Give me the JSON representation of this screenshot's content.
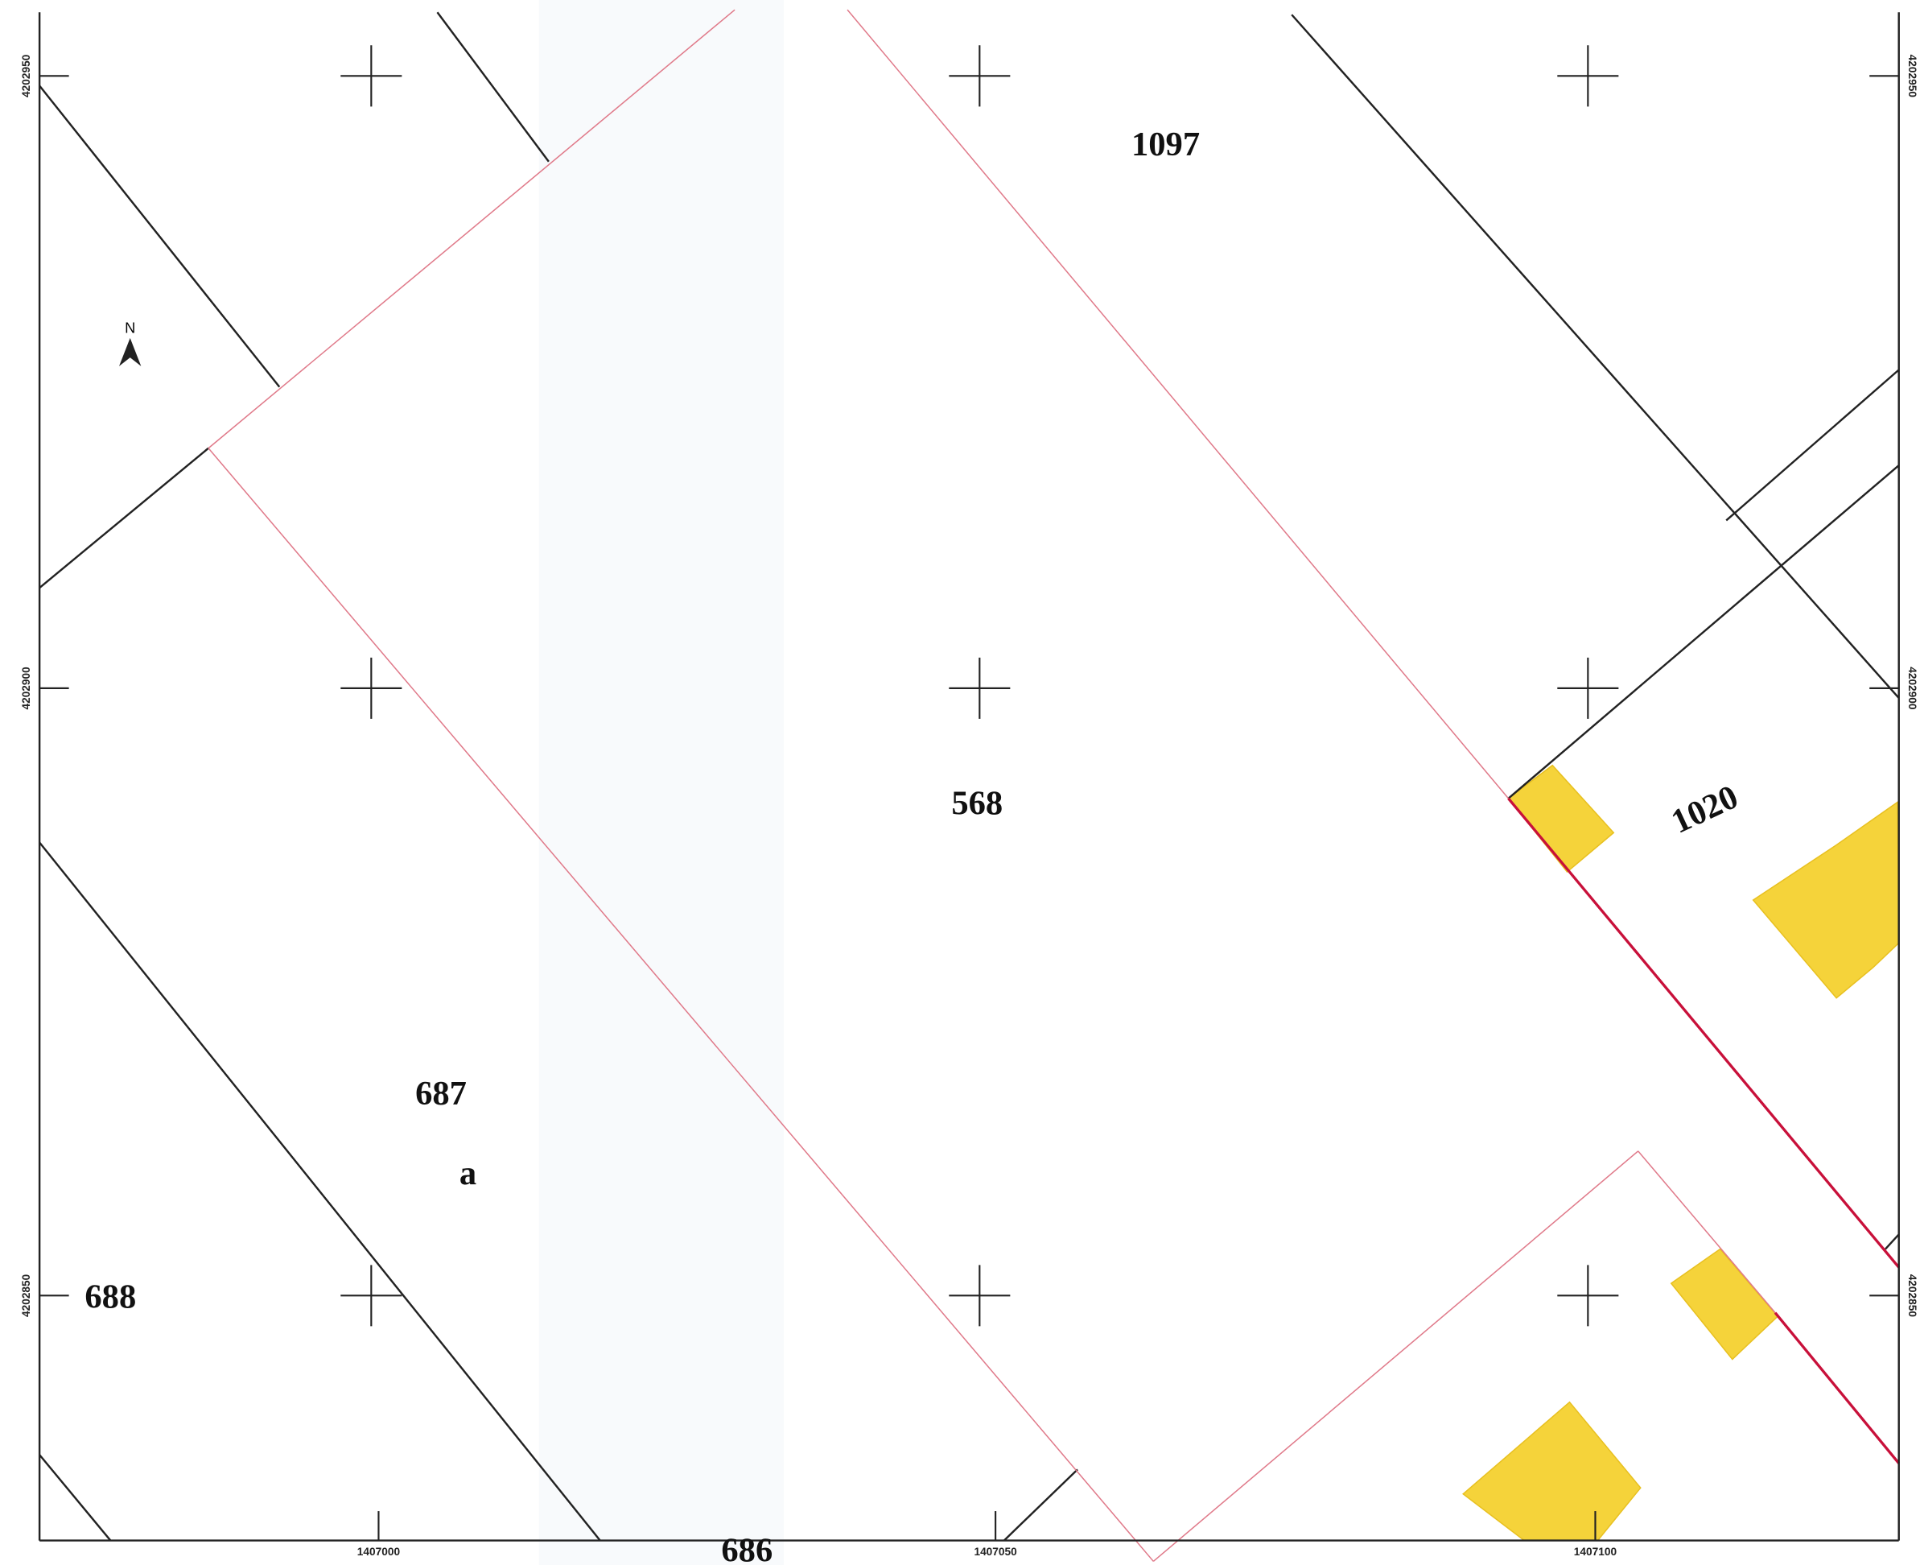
{
  "map": {
    "north": "N",
    "parcels": [
      "1097",
      "568",
      "1020",
      "687",
      "a",
      "688",
      "686"
    ],
    "x_labels": [
      "1407000",
      "1407050",
      "1407100"
    ],
    "y_labels": [
      "4202950",
      "4202900",
      "4202850"
    ]
  }
}
